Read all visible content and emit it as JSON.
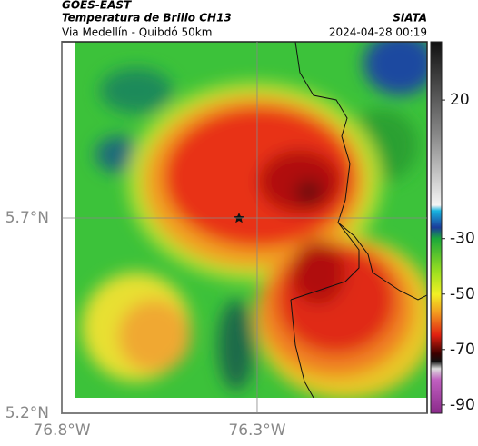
{
  "header": {
    "title": "GOES-EAST",
    "subtitle": "Temperatura de Brillo CH13",
    "source": "SIATA",
    "route": "Via Medellín - Quibdó 50km",
    "timestamp": "2024-04-28 00:19"
  },
  "map": {
    "xlim": [
      -76.8,
      -75.865
    ],
    "ylim": [
      5.2,
      6.151
    ],
    "xticks": [
      {
        "value": -76.8,
        "label": "76.8°W"
      },
      {
        "value": -76.3,
        "label": "76.3°W"
      }
    ],
    "yticks": [
      {
        "value": 5.2,
        "label": "5.2°N"
      },
      {
        "value": 5.7,
        "label": "5.7°N"
      }
    ]
  },
  "colorbar": {
    "lim": [
      -93,
      41
    ],
    "ticks": [
      20,
      -30,
      -50,
      -70,
      -90
    ]
  }
}
